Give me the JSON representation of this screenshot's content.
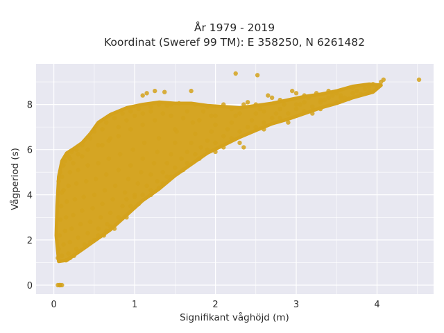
{
  "chart_data": {
    "type": "scatter",
    "title_line1": "År 1979 - 2019",
    "title_line2": "Koordinat (Sweref 99 TM): E 358250, N 6261482",
    "xlabel": "Signifikant våghöjd (m)",
    "ylabel": "Vågperiod (s)",
    "xlim": [
      -0.22,
      4.7
    ],
    "ylim": [
      -0.4,
      9.8
    ],
    "xticks": [
      "0",
      "1",
      "2",
      "3",
      "4"
    ],
    "yticks": [
      "0",
      "2",
      "4",
      "6",
      "8"
    ],
    "grid": true,
    "legend": "none",
    "colors": {
      "plot_bg": "#e8e8f1",
      "grid": "#ffffff",
      "marker": "#d4a21c"
    },
    "points": [
      [
        0.05,
        0.0
      ],
      [
        0.08,
        0.0
      ],
      [
        0.1,
        0.0
      ],
      [
        0.07,
        0.0
      ],
      [
        0.05,
        1.2
      ],
      [
        0.06,
        1.6
      ],
      [
        0.07,
        2.2
      ],
      [
        0.08,
        2.9
      ],
      [
        0.09,
        3.5
      ],
      [
        0.1,
        4.1
      ],
      [
        0.1,
        4.8
      ],
      [
        0.12,
        5.3
      ],
      [
        0.1,
        1.3
      ],
      [
        0.12,
        1.8
      ],
      [
        0.14,
        2.4
      ],
      [
        0.15,
        3.0
      ],
      [
        0.16,
        3.7
      ],
      [
        0.18,
        4.4
      ],
      [
        0.2,
        5.0
      ],
      [
        0.2,
        5.6
      ],
      [
        0.18,
        1.4
      ],
      [
        0.2,
        1.9
      ],
      [
        0.22,
        2.5
      ],
      [
        0.24,
        3.1
      ],
      [
        0.26,
        3.8
      ],
      [
        0.28,
        4.5
      ],
      [
        0.3,
        5.1
      ],
      [
        0.3,
        5.8
      ],
      [
        0.28,
        1.6
      ],
      [
        0.3,
        2.1
      ],
      [
        0.33,
        2.7
      ],
      [
        0.35,
        3.3
      ],
      [
        0.37,
        3.9
      ],
      [
        0.4,
        4.6
      ],
      [
        0.42,
        5.3
      ],
      [
        0.42,
        6.0
      ],
      [
        0.38,
        1.8
      ],
      [
        0.42,
        2.3
      ],
      [
        0.45,
        2.8
      ],
      [
        0.48,
        3.4
      ],
      [
        0.5,
        4.0
      ],
      [
        0.52,
        4.7
      ],
      [
        0.55,
        5.4
      ],
      [
        0.55,
        6.2
      ],
      [
        0.5,
        2.0
      ],
      [
        0.55,
        2.5
      ],
      [
        0.58,
        3.0
      ],
      [
        0.6,
        3.6
      ],
      [
        0.63,
        4.2
      ],
      [
        0.65,
        4.9
      ],
      [
        0.68,
        5.6
      ],
      [
        0.68,
        6.4
      ],
      [
        0.62,
        2.2
      ],
      [
        0.66,
        2.7
      ],
      [
        0.7,
        3.2
      ],
      [
        0.73,
        3.8
      ],
      [
        0.76,
        4.4
      ],
      [
        0.8,
        5.1
      ],
      [
        0.82,
        5.8
      ],
      [
        0.8,
        6.6
      ],
      [
        0.75,
        2.5
      ],
      [
        0.8,
        3.0
      ],
      [
        0.85,
        3.5
      ],
      [
        0.88,
        4.1
      ],
      [
        0.92,
        4.7
      ],
      [
        0.95,
        5.3
      ],
      [
        0.98,
        6.0
      ],
      [
        0.95,
        6.9
      ],
      [
        0.9,
        3.0
      ],
      [
        0.95,
        3.5
      ],
      [
        1.0,
        4.0
      ],
      [
        1.04,
        4.5
      ],
      [
        1.08,
        5.0
      ],
      [
        1.1,
        5.6
      ],
      [
        1.12,
        6.3
      ],
      [
        1.1,
        7.1
      ],
      [
        1.05,
        3.6
      ],
      [
        1.1,
        4.0
      ],
      [
        1.15,
        4.4
      ],
      [
        1.2,
        4.9
      ],
      [
        1.24,
        5.4
      ],
      [
        1.28,
        5.9
      ],
      [
        1.3,
        6.5
      ],
      [
        1.25,
        7.3
      ],
      [
        1.2,
        4.2
      ],
      [
        1.28,
        4.6
      ],
      [
        1.35,
        5.0
      ],
      [
        1.4,
        5.4
      ],
      [
        1.45,
        5.8
      ],
      [
        1.5,
        6.3
      ],
      [
        1.52,
        6.8
      ],
      [
        1.45,
        7.5
      ],
      [
        1.4,
        4.8
      ],
      [
        1.5,
        5.2
      ],
      [
        1.58,
        5.6
      ],
      [
        1.65,
        5.9
      ],
      [
        1.7,
        6.3
      ],
      [
        1.75,
        6.7
      ],
      [
        1.72,
        7.2
      ],
      [
        1.65,
        7.7
      ],
      [
        1.65,
        5.4
      ],
      [
        1.75,
        5.8
      ],
      [
        1.82,
        6.1
      ],
      [
        1.9,
        6.4
      ],
      [
        1.95,
        6.8
      ],
      [
        2.0,
        7.1
      ],
      [
        1.95,
        7.5
      ],
      [
        1.9,
        7.9
      ],
      [
        1.9,
        6.0
      ],
      [
        2.0,
        6.3
      ],
      [
        2.1,
        6.6
      ],
      [
        2.15,
        6.9
      ],
      [
        2.2,
        7.2
      ],
      [
        2.25,
        7.5
      ],
      [
        2.2,
        7.8
      ],
      [
        2.1,
        8.0
      ],
      [
        2.2,
        6.5
      ],
      [
        2.3,
        6.8
      ],
      [
        2.4,
        7.0
      ],
      [
        2.45,
        7.3
      ],
      [
        2.5,
        7.6
      ],
      [
        2.55,
        7.8
      ],
      [
        2.5,
        8.0
      ],
      [
        2.4,
        8.1
      ],
      [
        2.5,
        7.0
      ],
      [
        2.6,
        7.2
      ],
      [
        2.7,
        7.4
      ],
      [
        2.75,
        7.6
      ],
      [
        2.8,
        7.8
      ],
      [
        2.85,
        8.0
      ],
      [
        2.8,
        8.2
      ],
      [
        2.7,
        8.3
      ],
      [
        2.8,
        7.4
      ],
      [
        2.9,
        7.6
      ],
      [
        3.0,
        7.8
      ],
      [
        3.05,
        8.0
      ],
      [
        3.1,
        8.1
      ],
      [
        3.15,
        8.3
      ],
      [
        3.1,
        8.4
      ],
      [
        3.0,
        8.5
      ],
      [
        3.1,
        7.7
      ],
      [
        3.2,
        7.9
      ],
      [
        3.3,
        8.1
      ],
      [
        3.35,
        8.2
      ],
      [
        3.4,
        8.3
      ],
      [
        3.45,
        8.4
      ],
      [
        3.5,
        8.5
      ],
      [
        3.4,
        8.6
      ],
      [
        3.5,
        8.1
      ],
      [
        3.6,
        8.3
      ],
      [
        3.7,
        8.5
      ],
      [
        3.75,
        8.6
      ],
      [
        3.85,
        8.7
      ],
      [
        3.9,
        8.8
      ],
      [
        3.95,
        8.9
      ],
      [
        4.0,
        8.8
      ],
      [
        4.05,
        9.0
      ],
      [
        4.08,
        9.1
      ],
      [
        4.02,
        8.85
      ],
      [
        3.9,
        8.6
      ],
      [
        3.7,
        8.75
      ],
      [
        3.55,
        8.4
      ],
      [
        3.65,
        8.25
      ],
      [
        3.8,
        8.45
      ],
      [
        4.52,
        9.1
      ],
      [
        2.52,
        9.3
      ],
      [
        2.25,
        9.37
      ],
      [
        1.15,
        8.5
      ],
      [
        1.25,
        8.6
      ],
      [
        1.37,
        8.55
      ],
      [
        1.7,
        8.6
      ],
      [
        1.1,
        8.4
      ],
      [
        0.45,
        6.5
      ],
      [
        0.5,
        6.8
      ],
      [
        0.6,
        6.9
      ],
      [
        0.65,
        7.2
      ],
      [
        0.75,
        7.4
      ],
      [
        0.85,
        7.6
      ],
      [
        0.95,
        7.7
      ],
      [
        1.05,
        7.8
      ],
      [
        1.2,
        7.9
      ],
      [
        1.3,
        8.0
      ],
      [
        1.4,
        7.95
      ],
      [
        1.45,
        8.0
      ],
      [
        1.55,
        8.05
      ],
      [
        1.75,
        8.0
      ],
      [
        1.85,
        7.7
      ],
      [
        1.5,
        6.9
      ],
      [
        0.35,
        6.2
      ],
      [
        0.28,
        6.0
      ],
      [
        0.22,
        5.9
      ],
      [
        0.18,
        5.7
      ],
      [
        0.14,
        5.5
      ],
      [
        0.1,
        5.3
      ],
      [
        0.08,
        5.0
      ],
      [
        0.06,
        4.6
      ],
      [
        0.3,
        1.5
      ],
      [
        0.2,
        1.2
      ],
      [
        0.15,
        1.1
      ],
      [
        0.25,
        1.3
      ],
      [
        0.45,
        1.9
      ],
      [
        0.55,
        2.2
      ],
      [
        0.65,
        2.4
      ],
      [
        0.7,
        2.6
      ],
      [
        0.9,
        3.8
      ],
      [
        1.0,
        3.9
      ],
      [
        1.2,
        4.0
      ],
      [
        1.3,
        4.3
      ],
      [
        1.35,
        4.5
      ],
      [
        1.45,
        4.8
      ],
      [
        1.6,
        5.1
      ],
      [
        1.8,
        5.6
      ],
      [
        2.0,
        5.9
      ],
      [
        2.1,
        6.1
      ],
      [
        2.3,
        6.3
      ],
      [
        2.6,
        6.9
      ],
      [
        2.9,
        7.2
      ],
      [
        3.2,
        7.6
      ],
      [
        3.3,
        7.8
      ],
      [
        2.35,
        6.1
      ],
      [
        0.12,
        4.2
      ],
      [
        0.16,
        5.8
      ],
      [
        0.24,
        5.4
      ],
      [
        0.35,
        5.7
      ],
      [
        0.6,
        6.2
      ],
      [
        0.7,
        6.5
      ],
      [
        0.8,
        7.0
      ],
      [
        0.9,
        7.3
      ],
      [
        1.0,
        7.5
      ],
      [
        1.1,
        7.6
      ],
      [
        1.2,
        7.7
      ],
      [
        1.35,
        7.6
      ],
      [
        1.6,
        7.4
      ],
      [
        1.8,
        7.3
      ],
      [
        2.0,
        7.5
      ],
      [
        2.3,
        7.6
      ],
      [
        2.6,
        7.7
      ],
      [
        3.0,
        8.0
      ],
      [
        3.3,
        8.2
      ],
      [
        3.55,
        8.3
      ],
      [
        3.25,
        8.5
      ],
      [
        2.95,
        8.6
      ],
      [
        2.65,
        8.4
      ],
      [
        2.35,
        8.0
      ]
    ]
  }
}
